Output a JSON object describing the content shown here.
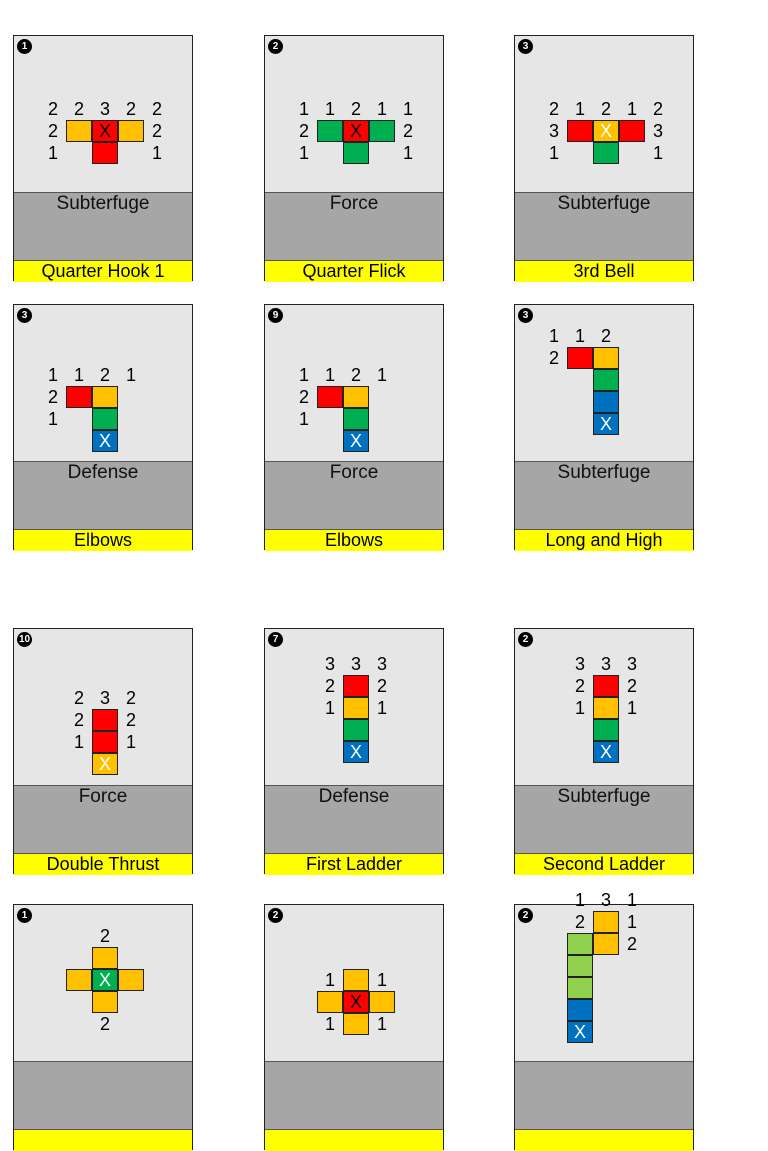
{
  "colors": {
    "red": "#ff0000",
    "orange": "#ffc000",
    "green": "#00b050",
    "blue": "#0070c0",
    "lime": "#92d050"
  },
  "cards": [
    {
      "badge": "1",
      "type": "Subterfuge",
      "name": "Quarter Hook 1",
      "cells": [
        {
          "c": 2,
          "r": 3,
          "color": "orange",
          "label": ""
        },
        {
          "c": 3,
          "r": 3,
          "color": "red",
          "label": "X"
        },
        {
          "c": 4,
          "r": 3,
          "color": "orange",
          "label": ""
        },
        {
          "c": 3,
          "r": 4,
          "color": "red",
          "label": ""
        }
      ],
      "numbers": [
        {
          "c": 1,
          "r": 2,
          "v": "2"
        },
        {
          "c": 2,
          "r": 2,
          "v": "2"
        },
        {
          "c": 3,
          "r": 2,
          "v": "3"
        },
        {
          "c": 4,
          "r": 2,
          "v": "2"
        },
        {
          "c": 5,
          "r": 2,
          "v": "2"
        },
        {
          "c": 1,
          "r": 3,
          "v": "2"
        },
        {
          "c": 5,
          "r": 3,
          "v": "2"
        },
        {
          "c": 1,
          "r": 4,
          "v": "1"
        },
        {
          "c": 5,
          "r": 4,
          "v": "1"
        }
      ]
    },
    {
      "badge": "2",
      "type": "Force",
      "name": "Quarter Flick",
      "cells": [
        {
          "c": 2,
          "r": 3,
          "color": "green",
          "label": ""
        },
        {
          "c": 3,
          "r": 3,
          "color": "red",
          "label": "X"
        },
        {
          "c": 4,
          "r": 3,
          "color": "green",
          "label": ""
        },
        {
          "c": 3,
          "r": 4,
          "color": "green",
          "label": ""
        }
      ],
      "numbers": [
        {
          "c": 1,
          "r": 2,
          "v": "1"
        },
        {
          "c": 2,
          "r": 2,
          "v": "1"
        },
        {
          "c": 3,
          "r": 2,
          "v": "2"
        },
        {
          "c": 4,
          "r": 2,
          "v": "1"
        },
        {
          "c": 5,
          "r": 2,
          "v": "1"
        },
        {
          "c": 1,
          "r": 3,
          "v": "2"
        },
        {
          "c": 5,
          "r": 3,
          "v": "2"
        },
        {
          "c": 1,
          "r": 4,
          "v": "1"
        },
        {
          "c": 5,
          "r": 4,
          "v": "1"
        }
      ]
    },
    {
      "badge": "3",
      "type": "Subterfuge",
      "name": "3rd Bell",
      "cells": [
        {
          "c": 2,
          "r": 3,
          "color": "red",
          "label": ""
        },
        {
          "c": 3,
          "r": 3,
          "color": "orange",
          "label": "X"
        },
        {
          "c": 4,
          "r": 3,
          "color": "red",
          "label": ""
        },
        {
          "c": 3,
          "r": 4,
          "color": "green",
          "label": ""
        }
      ],
      "numbers": [
        {
          "c": 1,
          "r": 2,
          "v": "2"
        },
        {
          "c": 2,
          "r": 2,
          "v": "1"
        },
        {
          "c": 3,
          "r": 2,
          "v": "2"
        },
        {
          "c": 4,
          "r": 2,
          "v": "1"
        },
        {
          "c": 5,
          "r": 2,
          "v": "2"
        },
        {
          "c": 1,
          "r": 3,
          "v": "3"
        },
        {
          "c": 5,
          "r": 3,
          "v": "3"
        },
        {
          "c": 1,
          "r": 4,
          "v": "1"
        },
        {
          "c": 5,
          "r": 4,
          "v": "1"
        }
      ]
    },
    {
      "badge": "3",
      "type": "Defense",
      "name": "Elbows",
      "cells": [
        {
          "c": 2,
          "r": 3,
          "color": "red",
          "label": ""
        },
        {
          "c": 3,
          "r": 3,
          "color": "orange",
          "label": ""
        },
        {
          "c": 3,
          "r": 4,
          "color": "green",
          "label": ""
        },
        {
          "c": 3,
          "r": 5,
          "color": "blue",
          "label": "X"
        }
      ],
      "numbers": [
        {
          "c": 1,
          "r": 2,
          "v": "1"
        },
        {
          "c": 2,
          "r": 2,
          "v": "1"
        },
        {
          "c": 3,
          "r": 2,
          "v": "2"
        },
        {
          "c": 4,
          "r": 2,
          "v": "1"
        },
        {
          "c": 1,
          "r": 3,
          "v": "2"
        },
        {
          "c": 1,
          "r": 4,
          "v": "1"
        }
      ]
    },
    {
      "badge": "9",
      "type": "Force",
      "name": "Elbows",
      "cells": [
        {
          "c": 2,
          "r": 3,
          "color": "red",
          "label": ""
        },
        {
          "c": 3,
          "r": 3,
          "color": "orange",
          "label": ""
        },
        {
          "c": 3,
          "r": 4,
          "color": "green",
          "label": ""
        },
        {
          "c": 3,
          "r": 5,
          "color": "blue",
          "label": "X"
        }
      ],
      "numbers": [
        {
          "c": 1,
          "r": 2,
          "v": "1"
        },
        {
          "c": 2,
          "r": 2,
          "v": "1"
        },
        {
          "c": 3,
          "r": 2,
          "v": "2"
        },
        {
          "c": 4,
          "r": 2,
          "v": "1"
        },
        {
          "c": 1,
          "r": 3,
          "v": "2"
        },
        {
          "c": 1,
          "r": 4,
          "v": "1"
        }
      ]
    },
    {
      "badge": "3",
      "type": "Subterfuge",
      "name": "Long and High",
      "cells": [
        {
          "c": 2,
          "r": 2,
          "color": "red",
          "label": ""
        },
        {
          "c": 3,
          "r": 2,
          "color": "orange",
          "label": ""
        },
        {
          "c": 3,
          "r": 3,
          "color": "green",
          "label": ""
        },
        {
          "c": 3,
          "r": 4,
          "color": "blue",
          "label": ""
        },
        {
          "c": 3,
          "r": 5,
          "color": "blue",
          "label": "X"
        }
      ],
      "numbers": [
        {
          "c": 1,
          "r": 1,
          "v": "1"
        },
        {
          "c": 2,
          "r": 1,
          "v": "1"
        },
        {
          "c": 3,
          "r": 1,
          "v": "2"
        },
        {
          "c": 1,
          "r": 2,
          "v": "2"
        }
      ]
    },
    {
      "badge": "10",
      "type": "Force",
      "name": "Double Thrust",
      "cells": [
        {
          "c": 3,
          "r": 3,
          "color": "red",
          "label": ""
        },
        {
          "c": 3,
          "r": 4,
          "color": "red",
          "label": ""
        },
        {
          "c": 3,
          "r": 5,
          "color": "orange",
          "label": "X"
        }
      ],
      "numbers": [
        {
          "c": 2,
          "r": 2,
          "v": "2"
        },
        {
          "c": 3,
          "r": 2,
          "v": "3"
        },
        {
          "c": 4,
          "r": 2,
          "v": "2"
        },
        {
          "c": 2,
          "r": 3,
          "v": "2"
        },
        {
          "c": 4,
          "r": 3,
          "v": "2"
        },
        {
          "c": 2,
          "r": 4,
          "v": "1"
        },
        {
          "c": 4,
          "r": 4,
          "v": "1"
        }
      ]
    },
    {
      "badge": "7",
      "type": "Defense",
      "name": "First Ladder",
      "cells": [
        {
          "c": 3,
          "r": 2,
          "color": "red",
          "label": ""
        },
        {
          "c": 3,
          "r": 3,
          "color": "orange",
          "label": ""
        },
        {
          "c": 3,
          "r": 4,
          "color": "green",
          "label": ""
        },
        {
          "c": 3,
          "r": 5,
          "color": "blue",
          "label": "X"
        }
      ],
      "numbers": [
        {
          "c": 2,
          "r": 1,
          "v": "3"
        },
        {
          "c": 3,
          "r": 1,
          "v": "3"
        },
        {
          "c": 4,
          "r": 1,
          "v": "3"
        },
        {
          "c": 2,
          "r": 2,
          "v": "2"
        },
        {
          "c": 4,
          "r": 2,
          "v": "2"
        },
        {
          "c": 2,
          "r": 3,
          "v": "1"
        },
        {
          "c": 4,
          "r": 3,
          "v": "1"
        }
      ]
    },
    {
      "badge": "2",
      "type": "Subterfuge",
      "name": "Second Ladder",
      "cells": [
        {
          "c": 3,
          "r": 2,
          "color": "red",
          "label": ""
        },
        {
          "c": 3,
          "r": 3,
          "color": "orange",
          "label": ""
        },
        {
          "c": 3,
          "r": 4,
          "color": "green",
          "label": ""
        },
        {
          "c": 3,
          "r": 5,
          "color": "blue",
          "label": "X"
        }
      ],
      "numbers": [
        {
          "c": 2,
          "r": 1,
          "v": "3"
        },
        {
          "c": 3,
          "r": 1,
          "v": "3"
        },
        {
          "c": 4,
          "r": 1,
          "v": "3"
        },
        {
          "c": 2,
          "r": 2,
          "v": "2"
        },
        {
          "c": 4,
          "r": 2,
          "v": "2"
        },
        {
          "c": 2,
          "r": 3,
          "v": "1"
        },
        {
          "c": 4,
          "r": 3,
          "v": "1"
        }
      ]
    },
    {
      "badge": "1",
      "type": "",
      "name": "",
      "cells": [
        {
          "c": 3,
          "r": 2,
          "color": "orange",
          "label": ""
        },
        {
          "c": 2,
          "r": 3,
          "color": "orange",
          "label": ""
        },
        {
          "c": 3,
          "r": 3,
          "color": "green",
          "label": "X"
        },
        {
          "c": 4,
          "r": 3,
          "color": "orange",
          "label": ""
        },
        {
          "c": 3,
          "r": 4,
          "color": "orange",
          "label": ""
        }
      ],
      "numbers": [
        {
          "c": 3,
          "r": 1,
          "v": "2"
        },
        {
          "c": 3,
          "r": 5,
          "v": "2"
        }
      ]
    },
    {
      "badge": "2",
      "type": "",
      "name": "",
      "cells": [
        {
          "c": 3,
          "r": 3,
          "color": "orange",
          "label": ""
        },
        {
          "c": 2,
          "r": 4,
          "color": "orange",
          "label": ""
        },
        {
          "c": 3,
          "r": 4,
          "color": "red",
          "label": "X"
        },
        {
          "c": 4,
          "r": 4,
          "color": "orange",
          "label": ""
        },
        {
          "c": 3,
          "r": 5,
          "color": "orange",
          "label": ""
        }
      ],
      "numbers": [
        {
          "c": 2,
          "r": 3,
          "v": "1"
        },
        {
          "c": 4,
          "r": 3,
          "v": "1"
        },
        {
          "c": 2,
          "r": 5,
          "v": "1"
        },
        {
          "c": 4,
          "r": 5,
          "v": "1"
        }
      ]
    },
    {
      "badge": "2",
      "type": "",
      "name": "",
      "cells": [
        {
          "c": 3,
          "r": 1,
          "color": "orange",
          "label": ""
        },
        {
          "c": 3,
          "r": 2,
          "color": "orange",
          "label": ""
        },
        {
          "c": 2,
          "r": 2,
          "color": "lime",
          "label": ""
        },
        {
          "c": 2,
          "r": 3,
          "color": "lime",
          "label": ""
        },
        {
          "c": 2,
          "r": 4,
          "color": "lime",
          "label": ""
        },
        {
          "c": 2,
          "r": 5,
          "color": "blue",
          "label": ""
        },
        {
          "c": 2,
          "r": 6,
          "color": "blue",
          "label": "X"
        }
      ],
      "numbers": [
        {
          "c": 2,
          "r": 0,
          "v": "1"
        },
        {
          "c": 3,
          "r": 0,
          "v": "3"
        },
        {
          "c": 4,
          "r": 0,
          "v": "1"
        },
        {
          "c": 2,
          "r": 1,
          "v": "2"
        },
        {
          "c": 4,
          "r": 1,
          "v": "1"
        },
        {
          "c": 4,
          "r": 2,
          "v": "2"
        }
      ]
    }
  ]
}
